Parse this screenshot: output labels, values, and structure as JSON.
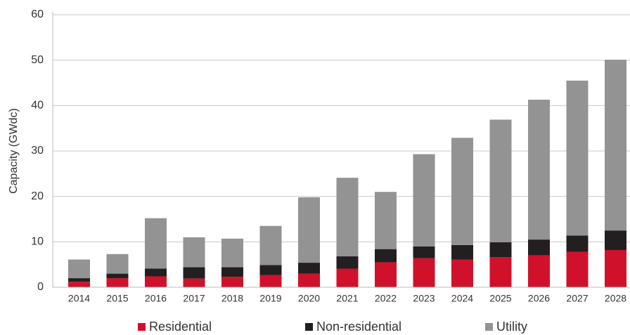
{
  "chart_data": {
    "type": "stacked_bar",
    "y_label": "Capacity (GWdc)",
    "categories": [
      "2014",
      "2015",
      "2016",
      "2017",
      "2018",
      "2019",
      "2020",
      "2021",
      "2022",
      "2023",
      "2024",
      "2025",
      "2026",
      "2027",
      "2028"
    ],
    "series": [
      {
        "name": "Residential",
        "color": "#d0112b",
        "values": [
          1.2,
          2.0,
          2.4,
          1.9,
          2.3,
          2.7,
          3.0,
          4.1,
          5.5,
          6.4,
          6.1,
          6.6,
          7.0,
          7.8,
          8.2
        ]
      },
      {
        "name": "Non-residential",
        "color": "#231f20",
        "values": [
          0.8,
          1.0,
          1.7,
          2.5,
          2.1,
          2.2,
          2.4,
          2.7,
          2.9,
          2.6,
          3.2,
          3.3,
          3.5,
          3.6,
          4.3
        ]
      },
      {
        "name": "Utility",
        "color": "#939393",
        "values": [
          4.1,
          4.3,
          11.1,
          6.6,
          6.3,
          8.6,
          14.4,
          17.3,
          12.6,
          20.3,
          23.6,
          27.0,
          30.8,
          34.1,
          37.6
        ]
      }
    ],
    "ylim": [
      0,
      60
    ],
    "yticks": [
      0,
      10,
      20,
      30,
      40,
      50,
      60
    ],
    "grid": true
  }
}
